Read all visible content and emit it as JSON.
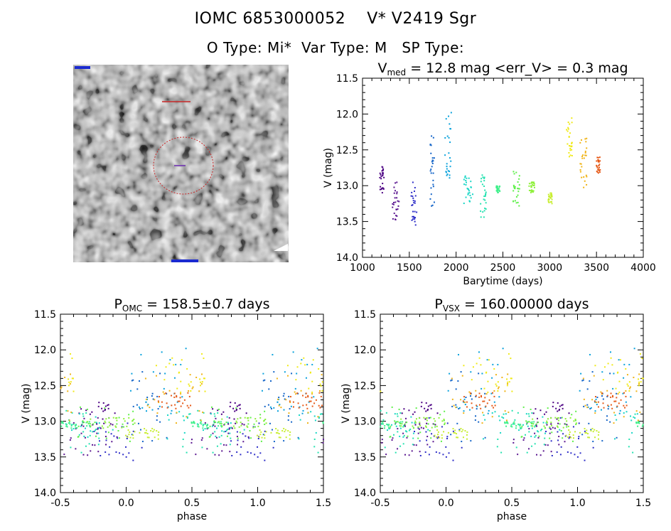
{
  "header": {
    "line1": "IOMC 6853000052    V* V2419 Sgr",
    "line2": "O Type: Mi*  Var Type: M   SP Type:"
  },
  "thumbnail": {
    "description_icon": "sky-image-thumbnail"
  },
  "chart_data": [
    {
      "type": "scatter",
      "panel": "lightcurve",
      "title": "V_med = 12.8 mag <err_V> = 0.3 mag",
      "title_parts": {
        "v": "V",
        "sub": "med",
        "rest": " = 12.8 mag <err_V> = 0.3 mag"
      },
      "xlabel": "Barytime (days)",
      "ylabel": "V (mag)",
      "xlim": [
        1000,
        4000
      ],
      "ylim": [
        14.0,
        11.5
      ],
      "xticks": [
        "1000",
        "1500",
        "2000",
        "2500",
        "3000",
        "3500",
        "4000"
      ],
      "yticks": [
        "11.5",
        "12.0",
        "12.5",
        "13.0",
        "13.5",
        "14.0"
      ],
      "groups": [
        {
          "color": "#4b0082",
          "t": [
            1180,
            1230
          ],
          "mag": [
            12.7,
            13.1
          ]
        },
        {
          "color": "#5a1590",
          "t": [
            1320,
            1390
          ],
          "mag": [
            12.95,
            13.5
          ]
        },
        {
          "color": "#2e2ec8",
          "t": [
            1520,
            1580
          ],
          "mag": [
            12.95,
            13.55
          ]
        },
        {
          "color": "#1565c8",
          "t": [
            1720,
            1770
          ],
          "mag": [
            12.3,
            13.3
          ]
        },
        {
          "color": "#0aa2dc",
          "t": [
            1880,
            1950
          ],
          "mag": [
            11.95,
            12.9
          ]
        },
        {
          "color": "#18d6c6",
          "t": [
            2080,
            2180
          ],
          "mag": [
            12.85,
            13.25
          ]
        },
        {
          "color": "#24e2b0",
          "t": [
            2260,
            2320
          ],
          "mag": [
            12.85,
            13.45
          ]
        },
        {
          "color": "#3ef08a",
          "t": [
            2430,
            2470
          ],
          "mag": [
            13.0,
            13.1
          ]
        },
        {
          "color": "#5ff04a",
          "t": [
            2600,
            2680
          ],
          "mag": [
            12.8,
            13.3
          ]
        },
        {
          "color": "#8ef03a",
          "t": [
            2780,
            2840
          ],
          "mag": [
            12.95,
            13.1
          ]
        },
        {
          "color": "#c8ee30",
          "t": [
            2980,
            3030
          ],
          "mag": [
            13.1,
            13.25
          ]
        },
        {
          "color": "#f0ea18",
          "t": [
            3180,
            3240
          ],
          "mag": [
            12.05,
            12.6
          ]
        },
        {
          "color": "#f0b418",
          "t": [
            3320,
            3400
          ],
          "mag": [
            12.3,
            13.05
          ]
        },
        {
          "color": "#e65a18",
          "t": [
            3500,
            3540
          ],
          "mag": [
            12.6,
            12.85
          ]
        }
      ]
    },
    {
      "type": "scatter",
      "panel": "phase_omc",
      "title": "P_OMC = 158.5±0.7 days",
      "title_parts": {
        "p": "P",
        "sub": "OMC",
        "rest": " = 158.5±0.7 days"
      },
      "period": 158.5,
      "xlabel": "phase",
      "ylabel": "V (mag)",
      "xlim": [
        -0.5,
        1.5
      ],
      "ylim": [
        14.0,
        11.5
      ],
      "xticks": [
        "-0.5",
        "0.0",
        "0.5",
        "1.0",
        "1.5"
      ],
      "yticks": [
        "11.5",
        "12.0",
        "12.5",
        "13.0",
        "13.5",
        "14.0"
      ]
    },
    {
      "type": "scatter",
      "panel": "phase_vsx",
      "title": "P_VSX = 160.00000 days",
      "title_parts": {
        "p": "P",
        "sub": "VSX",
        "rest": " = 160.00000 days"
      },
      "period": 160.0,
      "xlabel": "phase",
      "ylabel": "V (mag)",
      "xlim": [
        -0.5,
        1.5
      ],
      "ylim": [
        14.0,
        11.5
      ],
      "xticks": [
        "-0.5",
        "0.0",
        "0.5",
        "1.0",
        "1.5"
      ],
      "yticks": [
        "11.5",
        "12.0",
        "12.5",
        "13.0",
        "13.5",
        "14.0"
      ]
    }
  ]
}
